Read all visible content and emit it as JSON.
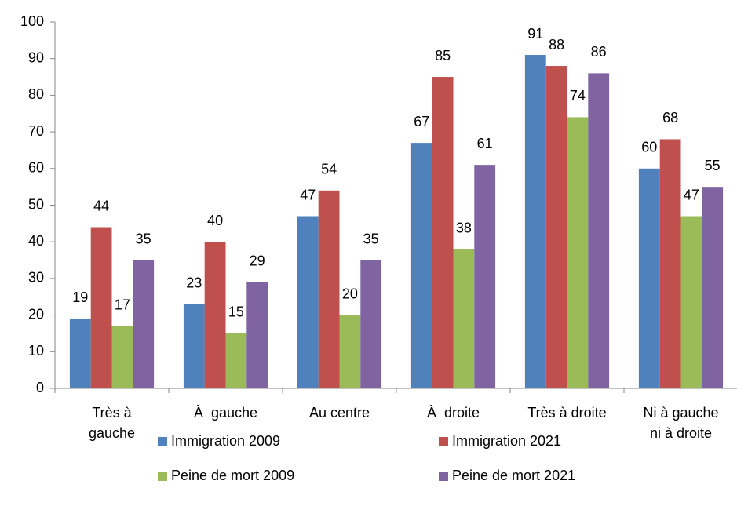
{
  "chart_data": {
    "type": "bar",
    "categories": [
      "Très à\ngauche",
      "À  gauche",
      "Au centre",
      "À  droite",
      "Très à droite",
      "Ni à gauche\nni à droite"
    ],
    "series": [
      {
        "name": "Immigration 2009",
        "color": "#4f81bd",
        "values": [
          19,
          23,
          47,
          67,
          91,
          60
        ]
      },
      {
        "name": "Immigration 2021",
        "color": "#c0504d",
        "values": [
          44,
          40,
          54,
          85,
          88,
          68
        ]
      },
      {
        "name": "Peine de mort 2009",
        "color": "#9bbb59",
        "values": [
          17,
          15,
          20,
          38,
          74,
          47
        ]
      },
      {
        "name": "Peine de mort 2021",
        "color": "#8064a2",
        "values": [
          35,
          29,
          35,
          61,
          86,
          55
        ]
      }
    ],
    "ylim": [
      0,
      100
    ],
    "yticks": [
      0,
      10,
      20,
      30,
      40,
      50,
      60,
      70,
      80,
      90,
      100
    ],
    "grid": false,
    "legend": "bottom"
  }
}
